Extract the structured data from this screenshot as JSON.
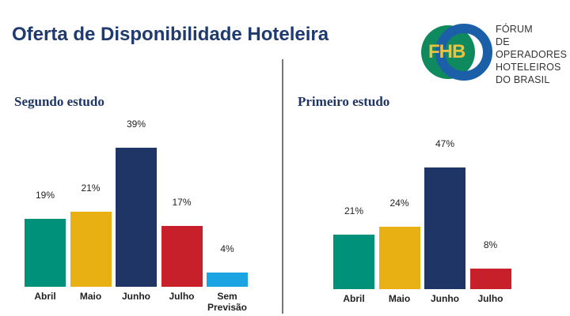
{
  "header": {
    "title": "Oferta de Disponibilidade Hoteleira"
  },
  "logo": {
    "letters": "FHB",
    "lines": [
      "FÓRUM",
      "DE OPERADORES",
      "HOTELEIROS",
      "DO BRASIL"
    ]
  },
  "chart_data": [
    {
      "type": "bar",
      "title": "Segundo estudo",
      "categories": [
        "Abril",
        "Maio",
        "Junho",
        "Julho",
        "Sem Previsão"
      ],
      "values": [
        19,
        21,
        39,
        17,
        4
      ],
      "value_labels": [
        "19%",
        "21%",
        "39%",
        "17%",
        "4%"
      ],
      "colors": [
        "#00917b",
        "#e8b012",
        "#1f3566",
        "#c8202b",
        "#1ba4e1"
      ]
    },
    {
      "type": "bar",
      "title": "Primeiro estudo",
      "categories": [
        "Abril",
        "Maio",
        "Junho",
        "Julho"
      ],
      "values": [
        21,
        24,
        47,
        8
      ],
      "value_labels": [
        "21%",
        "24%",
        "47%",
        "8%"
      ],
      "colors": [
        "#00917b",
        "#e8b012",
        "#1f3566",
        "#c8202b"
      ]
    }
  ]
}
